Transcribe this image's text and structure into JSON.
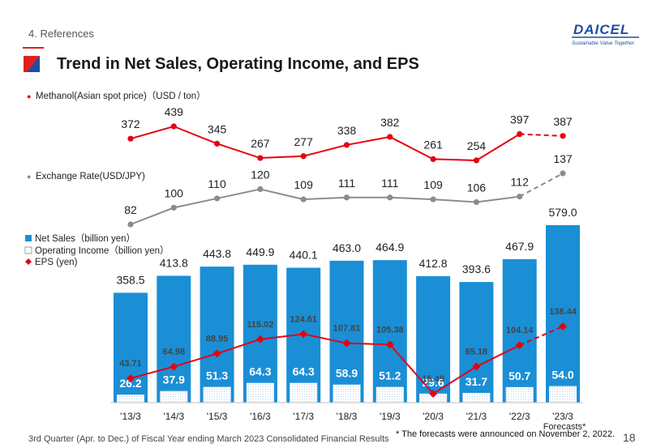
{
  "header": {
    "section": "4. References",
    "title": "Trend in Net Sales, Operating Income, and EPS",
    "logo_text": "DAICEL",
    "logo_tagline": "Sustainable Value Together"
  },
  "footer": {
    "left": "3rd Quarter (Apr. to Dec.) of Fiscal Year ending March 2023 Consolidated Financial Results",
    "note": "* The forecasts were announced on November 2, 2022.",
    "page": "18"
  },
  "colors": {
    "net_sales": "#1a8fd6",
    "operating_income": "#ffffff",
    "eps": "#e60012",
    "methanol": "#e60012",
    "exchange": "#8c8c8c",
    "accent": "#e02020"
  },
  "chart_data": [
    {
      "type": "line",
      "title": "Methanol(Asian spot price)（USD / ton）",
      "legend": "Methanol(Asian spot price)（USD / ton）",
      "categories": [
        "'13/3",
        "'14/3",
        "'15/3",
        "'16/3",
        "'17/3",
        "'18/3",
        "'19/3",
        "'20/3",
        "'21/3",
        "'22/3",
        "'23/3"
      ],
      "values": [
        372,
        439,
        345,
        267,
        277,
        338,
        382,
        261,
        254,
        397,
        387
      ],
      "forecast_from_index": 9
    },
    {
      "type": "line",
      "title": "Exchange Rate(USD/JPY)",
      "legend": "Exchange Rate(USD/JPY)",
      "categories": [
        "'13/3",
        "'14/3",
        "'15/3",
        "'16/3",
        "'17/3",
        "'18/3",
        "'19/3",
        "'20/3",
        "'21/3",
        "'22/3",
        "'23/3"
      ],
      "values": [
        82,
        100,
        110,
        120,
        109,
        111,
        111,
        109,
        106,
        112,
        137
      ],
      "forecast_from_index": 9
    },
    {
      "type": "bar",
      "categories": [
        "'13/3",
        "'14/3",
        "'15/3",
        "'16/3",
        "'17/3",
        "'18/3",
        "'19/3",
        "'20/3",
        "'21/3",
        "'22/3",
        "'23/3"
      ],
      "forecast_label": "Forecasts*",
      "ylim": [
        0,
        600
      ],
      "series": [
        {
          "name": "Net Sales（billion yen）",
          "values": [
            358.5,
            413.8,
            443.8,
            449.9,
            440.1,
            463.0,
            464.9,
            412.8,
            393.6,
            467.9,
            579.0
          ]
        },
        {
          "name": "Operating Income（billion yen）",
          "values": [
            26.2,
            37.9,
            51.3,
            64.3,
            64.3,
            58.9,
            51.2,
            29.6,
            31.7,
            50.7,
            54.0
          ]
        },
        {
          "name": "EPS (yen)",
          "values": [
            43.71,
            64.98,
            88.95,
            115.02,
            124.61,
            107.81,
            105.38,
            15.49,
            65.18,
            104.14,
            138.44
          ],
          "forecast_from_index": 9
        }
      ]
    }
  ]
}
